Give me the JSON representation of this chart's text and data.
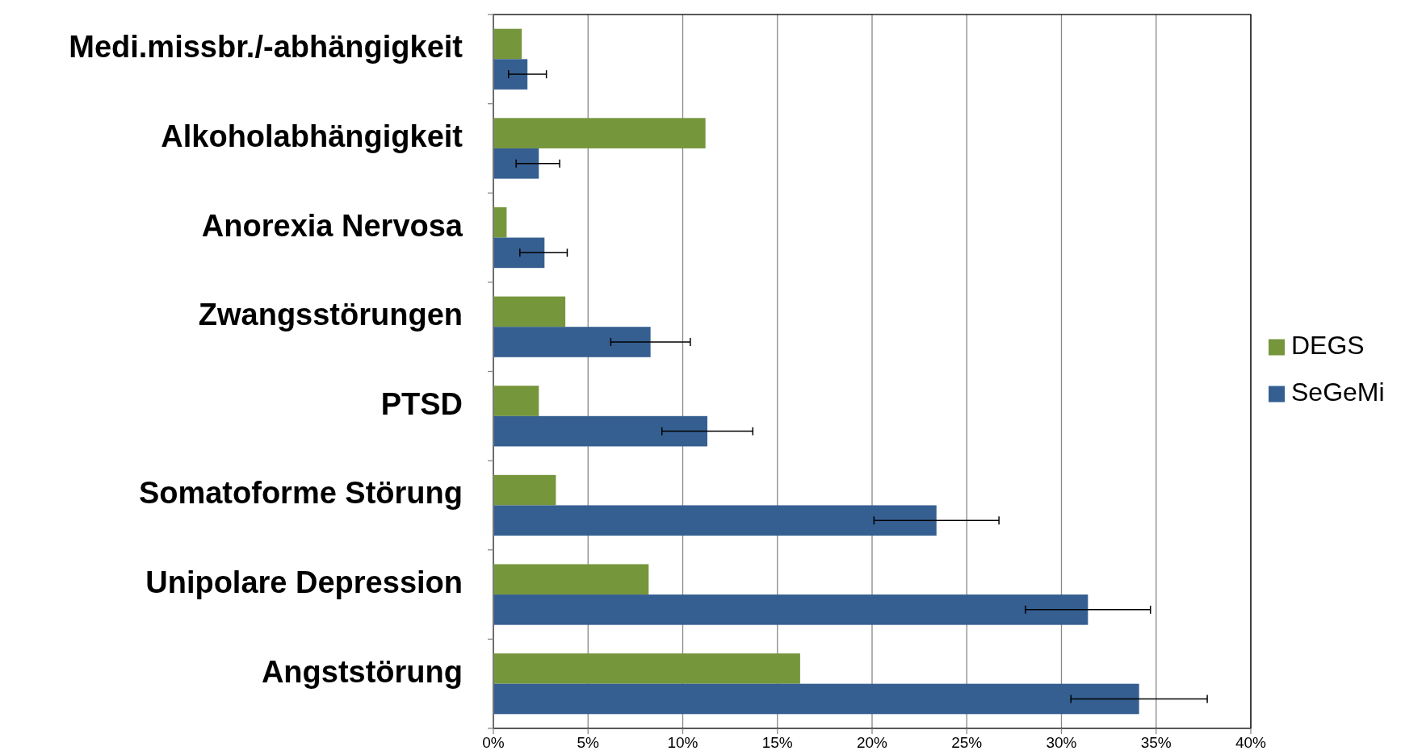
{
  "chart_data": {
    "type": "bar",
    "orientation": "horizontal",
    "categories": [
      "Medi.missbr./-abhängigkeit",
      "Alkoholabhängigkeit",
      "Anorexia Nervosa",
      "Zwangsstörungen",
      "PTSD",
      "Somatoforme Störung",
      "Unipolare Depression",
      "Angststörung"
    ],
    "series": [
      {
        "name": "DEGS",
        "color": "#76963c",
        "values": [
          1.5,
          11.2,
          0.7,
          3.8,
          2.4,
          3.3,
          8.2,
          16.2
        ]
      },
      {
        "name": "SeGeMi",
        "color": "#355f91",
        "values": [
          1.8,
          2.4,
          2.7,
          8.3,
          11.3,
          23.4,
          31.4,
          34.1
        ],
        "errors": [
          [
            0.8,
            2.8
          ],
          [
            1.2,
            3.5
          ],
          [
            1.4,
            3.9
          ],
          [
            6.2,
            10.4
          ],
          [
            8.9,
            13.7
          ],
          [
            20.1,
            26.7
          ],
          [
            28.1,
            34.7
          ],
          [
            30.5,
            37.7
          ]
        ]
      }
    ],
    "xlim": [
      0,
      40
    ],
    "xticks": [
      {
        "value": 0,
        "label": "0%"
      },
      {
        "value": 5,
        "label": "5%"
      },
      {
        "value": 10,
        "label": "10%"
      },
      {
        "value": 15,
        "label": "15%"
      },
      {
        "value": 20,
        "label": "20%"
      },
      {
        "value": 25,
        "label": "25%"
      },
      {
        "value": 30,
        "label": "30%"
      },
      {
        "value": 35,
        "label": "35%"
      },
      {
        "value": 40,
        "label": "40%"
      }
    ],
    "grid": "x",
    "legend": "right"
  }
}
